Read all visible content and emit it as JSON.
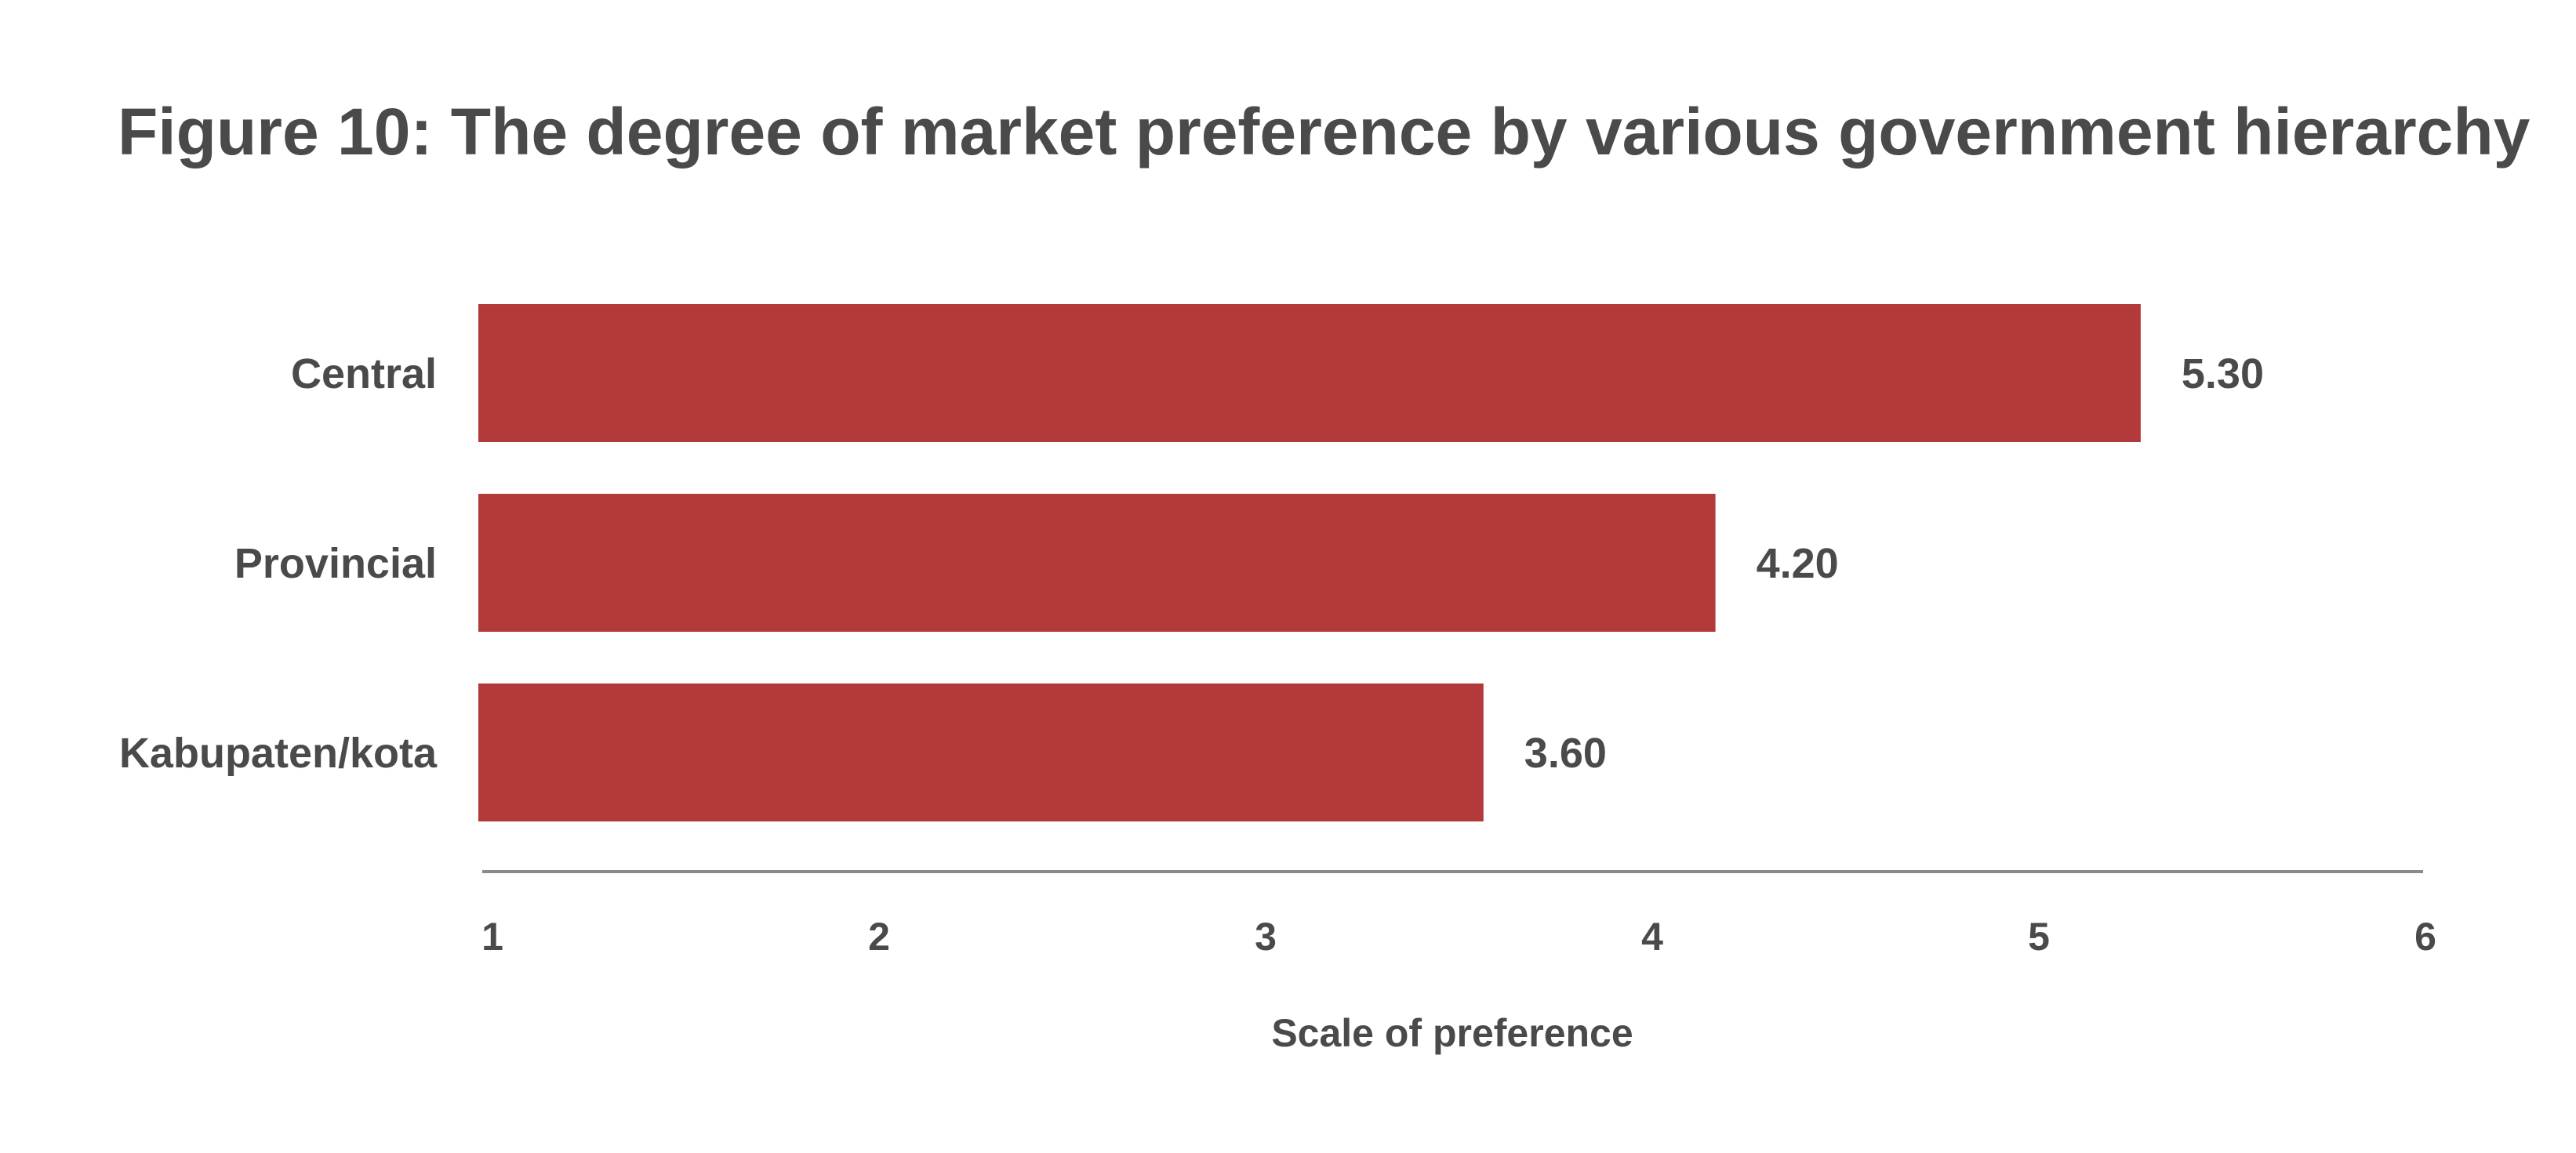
{
  "chart_data": {
    "type": "bar",
    "orientation": "horizontal",
    "title": "Figure 10: The degree of market preference by various government hierarchy",
    "categories": [
      "Central",
      "Provincial",
      "Kabupaten/kota"
    ],
    "values": [
      5.3,
      4.2,
      3.6
    ],
    "value_labels": [
      "5.30",
      "4.20",
      "3.60"
    ],
    "xlabel": "Scale of preference",
    "ylabel": "",
    "xlim": [
      1,
      6
    ],
    "xticks": [
      "1",
      "2",
      "3",
      "4",
      "5",
      "6"
    ],
    "grid": false,
    "legend": "none"
  },
  "colors": {
    "bar": "#b33a3a",
    "text": "#4a4a4a",
    "axis": "#8a8a8a",
    "background": "#ffffff"
  }
}
